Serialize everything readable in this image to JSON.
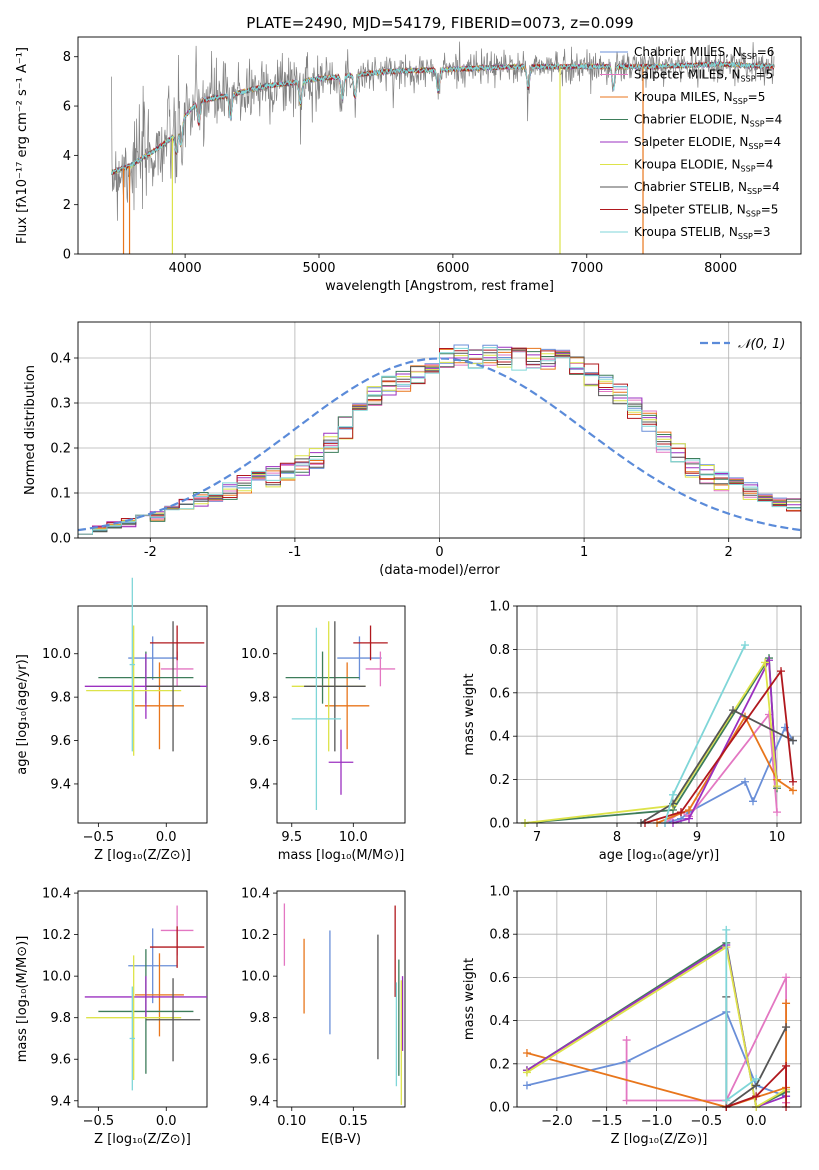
{
  "figure": {
    "title": "PLATE=2490, MJD=54179, FIBERID=0073, z=0.099"
  },
  "colors": {
    "Chabrier MILES": "#6a8fd8",
    "Salpeter MILES": "#e377c2",
    "Kroupa MILES": "#e8761c",
    "Chabrier ELODIE": "#3d7d5a",
    "Salpeter ELODIE": "#9b30c0",
    "Kroupa ELODIE": "#dde34a",
    "Chabrier STELIB": "#555555",
    "Salpeter STELIB": "#b0181e",
    "Kroupa STELIB": "#7fd6d8",
    "normal": "#5b8bd9"
  },
  "chart_data": [
    {
      "id": "spectrum",
      "type": "line",
      "title": "PLATE=2490, MJD=54179, FIBERID=0073, z=0.099",
      "xlabel": "wavelength [Angstrom, rest frame]",
      "ylabel": "Flux [fλ10⁻¹⁷ erg cm⁻² s⁻¹ A⁻¹]",
      "xlim": [
        3200,
        8600
      ],
      "ylim": [
        0,
        8.8
      ],
      "xticks": [
        4000,
        5000,
        6000,
        7000,
        8000
      ],
      "yticks": [
        0,
        2,
        4,
        6,
        8
      ],
      "legend_position": "upper right",
      "grid": false,
      "continuum_knots": {
        "x": [
          3450,
          3600,
          3800,
          3900,
          4000,
          4100,
          4300,
          4600,
          5000,
          5500,
          6000,
          6500,
          7000,
          7500,
          8000,
          8400
        ],
        "y": [
          3.3,
          3.6,
          4.3,
          4.7,
          5.6,
          6.2,
          6.4,
          6.8,
          7.1,
          7.4,
          7.5,
          7.6,
          7.6,
          7.6,
          7.7,
          7.6
        ]
      },
      "spikes": [
        {
          "x": 3540,
          "y": 0
        },
        {
          "x": 3585,
          "y": 0
        },
        {
          "x": 3905,
          "y": 0
        },
        {
          "x": 6800,
          "y": 0
        },
        {
          "x": 7420,
          "y": 0
        }
      ],
      "series": [
        {
          "name": "Chabrier MILES, N_SSP=6",
          "label_pre": "Chabrier MILES, N",
          "label_sub": "SSP",
          "label_post": "=6"
        },
        {
          "name": "Salpeter MILES, N_SSP=5",
          "label_pre": "Salpeter MILES, N",
          "label_sub": "SSP",
          "label_post": "=5"
        },
        {
          "name": "Kroupa MILES, N_SSP=5",
          "label_pre": "Kroupa MILES, N",
          "label_sub": "SSP",
          "label_post": "=5"
        },
        {
          "name": "Chabrier ELODIE, N_SSP=4",
          "label_pre": "Chabrier ELODIE, N",
          "label_sub": "SSP",
          "label_post": "=4"
        },
        {
          "name": "Salpeter ELODIE, N_SSP=4",
          "label_pre": "Salpeter ELODIE, N",
          "label_sub": "SSP",
          "label_post": "=4"
        },
        {
          "name": "Kroupa ELODIE, N_SSP=4",
          "label_pre": "Kroupa ELODIE, N",
          "label_sub": "SSP",
          "label_post": "=4"
        },
        {
          "name": "Chabrier STELIB, N_SSP=4",
          "label_pre": "Chabrier STELIB, N",
          "label_sub": "SSP",
          "label_post": "=4"
        },
        {
          "name": "Salpeter STELIB, N_SSP=5",
          "label_pre": "Salpeter STELIB, N",
          "label_sub": "SSP",
          "label_post": "=5"
        },
        {
          "name": "Kroupa STELIB, N_SSP=3",
          "label_pre": "Kroupa STELIB, N",
          "label_sub": "SSP",
          "label_post": "=3"
        }
      ]
    },
    {
      "id": "residuals",
      "type": "histogram",
      "xlabel": "(data-model)/error",
      "ylabel": "Normed distribution",
      "xlim": [
        -2.5,
        2.5
      ],
      "ylim": [
        0,
        0.48
      ],
      "xticks": [
        -2,
        -1,
        0,
        1,
        2
      ],
      "yticks": [
        0.0,
        0.1,
        0.2,
        0.3,
        0.4
      ],
      "grid": true,
      "legend": "𝒩(0, 1)",
      "legend_position": "upper right",
      "bin_width": 0.1,
      "bin_start": -2.5,
      "base_values": [
        0.016,
        0.021,
        0.028,
        0.034,
        0.041,
        0.048,
        0.058,
        0.071,
        0.085,
        0.096,
        0.106,
        0.118,
        0.13,
        0.138,
        0.148,
        0.16,
        0.178,
        0.212,
        0.245,
        0.285,
        0.318,
        0.335,
        0.35,
        0.366,
        0.39,
        0.4,
        0.405,
        0.402,
        0.405,
        0.4,
        0.398,
        0.4,
        0.398,
        0.395,
        0.382,
        0.362,
        0.34,
        0.322,
        0.29,
        0.258,
        0.215,
        0.188,
        0.156,
        0.14,
        0.128,
        0.113,
        0.104,
        0.093,
        0.082,
        0.075,
        0.07,
        0.06,
        0.05,
        0.042,
        0.035,
        0.03,
        0.025,
        0.02,
        0.017,
        0.014,
        0.012
      ]
    },
    {
      "id": "age-vs-Z",
      "type": "errorbar",
      "xlabel": "Z [log₁₀(Z/Z⊙)]",
      "ylabel": "age  [log₁₀(age/yr)]",
      "xlim": [
        -0.65,
        0.3
      ],
      "ylim": [
        9.22,
        10.22
      ],
      "xticks": [
        -0.5,
        0.0
      ],
      "xticklabels": [
        "−0.5",
        "0.0"
      ],
      "yticks": [
        9.4,
        9.6,
        9.8,
        10.0
      ],
      "yticklabels": [
        "9.4",
        "9.6",
        "9.8",
        "10.0"
      ],
      "points": [
        {
          "series": "Chabrier MILES",
          "x": -0.1,
          "xerr": 0.18,
          "y": 9.98,
          "yerr": 0.1
        },
        {
          "series": "Salpeter MILES",
          "x": 0.08,
          "xerr": 0.12,
          "y": 9.93,
          "yerr": 0.08
        },
        {
          "series": "Kroupa MILES",
          "x": -0.05,
          "xerr": 0.18,
          "y": 9.76,
          "yerr": 0.2
        },
        {
          "series": "Chabrier ELODIE",
          "x": -0.15,
          "xerr": 0.35,
          "y": 9.89,
          "yerr": 0.12
        },
        {
          "series": "Salpeter ELODIE",
          "x": -0.15,
          "xerr": 0.45,
          "y": 9.85,
          "yerr": 0.15
        },
        {
          "series": "Kroupa ELODIE",
          "x": -0.24,
          "xerr": 0.35,
          "y": 9.83,
          "yerr": 0.3
        },
        {
          "series": "Chabrier STELIB",
          "x": 0.05,
          "xerr": 0.2,
          "y": 9.85,
          "yerr": 0.3
        },
        {
          "series": "Salpeter STELIB",
          "x": 0.08,
          "xerr": 0.2,
          "y": 10.05,
          "yerr": 0.08
        },
        {
          "series": "Kroupa STELIB",
          "x": -0.25,
          "xerr": 0.02,
          "y": 9.95,
          "yerr": 0.4
        }
      ]
    },
    {
      "id": "age-vs-mass",
      "type": "errorbar",
      "xlabel": "mass [log₁₀(M/M⊙)]",
      "ylabel": "",
      "xlim": [
        9.38,
        10.42
      ],
      "ylim": [
        9.22,
        10.22
      ],
      "xticks": [
        9.5,
        10.0
      ],
      "xticklabels": [
        "9.5",
        "10.0"
      ],
      "yticks": [
        9.4,
        9.6,
        9.8,
        10.0
      ],
      "yticklabels": [
        "9.4",
        "9.6",
        "9.8",
        "10.0"
      ],
      "points": [
        {
          "series": "Chabrier MILES",
          "x": 10.05,
          "xerr": 0.18,
          "y": 9.98,
          "yerr": 0.1
        },
        {
          "series": "Salpeter MILES",
          "x": 10.22,
          "xerr": 0.12,
          "y": 9.93,
          "yerr": 0.08
        },
        {
          "series": "Kroupa MILES",
          "x": 9.95,
          "xerr": 0.18,
          "y": 9.76,
          "yerr": 0.2
        },
        {
          "series": "Chabrier ELODIE",
          "x": 9.75,
          "xerr": 0.3,
          "y": 9.89,
          "yerr": 0.12
        },
        {
          "series": "Salpeter ELODIE",
          "x": 9.9,
          "xerr": 0.1,
          "y": 9.5,
          "yerr": 0.15
        },
        {
          "series": "Kroupa ELODIE",
          "x": 9.8,
          "xerr": 0.3,
          "y": 9.85,
          "yerr": 0.3
        },
        {
          "series": "Chabrier STELIB",
          "x": 9.85,
          "xerr": 0.25,
          "y": 9.85,
          "yerr": 0.3
        },
        {
          "series": "Salpeter STELIB",
          "x": 10.14,
          "xerr": 0.14,
          "y": 10.05,
          "yerr": 0.08
        },
        {
          "series": "Kroupa STELIB",
          "x": 9.7,
          "xerr": 0.2,
          "y": 9.7,
          "yerr": 0.42
        }
      ]
    },
    {
      "id": "weight-vs-age",
      "type": "line",
      "xlabel": "age  [log₁₀(age/yr)]",
      "ylabel": "mass weight",
      "xlim": [
        6.75,
        10.3
      ],
      "ylim": [
        0,
        1.0
      ],
      "xticks": [
        7,
        8,
        9,
        10
      ],
      "xticklabels": [
        "7",
        "8",
        "9",
        "10"
      ],
      "yticks": [
        0.0,
        0.2,
        0.4,
        0.6,
        0.8,
        1.0
      ],
      "yticklabels": [
        "0.0",
        "0.2",
        "0.4",
        "0.6",
        "0.8",
        "1.0"
      ],
      "grid": true,
      "series": [
        {
          "series": "Chabrier MILES",
          "x": [
            8.6,
            8.8,
            8.9,
            9.6,
            9.7,
            10.1,
            10.2
          ],
          "y": [
            0.0,
            0.02,
            0.05,
            0.19,
            0.1,
            0.44,
            0.38
          ]
        },
        {
          "series": "Salpeter MILES",
          "x": [
            8.6,
            8.8,
            8.9,
            9.9,
            10.0
          ],
          "y": [
            0.0,
            0.05,
            0.03,
            0.5,
            0.05
          ]
        },
        {
          "series": "Kroupa MILES",
          "x": [
            8.5,
            8.9,
            9.6,
            10.0,
            10.2
          ],
          "y": [
            0.0,
            0.06,
            0.49,
            0.2,
            0.15
          ]
        },
        {
          "series": "Chabrier ELODIE",
          "x": [
            6.85,
            8.7,
            9.9,
            10.0
          ],
          "y": [
            0.0,
            0.06,
            0.76,
            0.16
          ]
        },
        {
          "series": "Salpeter ELODIE",
          "x": [
            8.7,
            8.9,
            9.9,
            10.0
          ],
          "y": [
            0.0,
            0.02,
            0.75,
            0.17
          ]
        },
        {
          "series": "Kroupa ELODIE",
          "x": [
            6.85,
            8.7,
            9.85,
            10.0
          ],
          "y": [
            0.0,
            0.08,
            0.74,
            0.17
          ]
        },
        {
          "series": "Chabrier STELIB",
          "x": [
            8.3,
            8.7,
            9.45,
            10.2
          ],
          "y": [
            0.0,
            0.09,
            0.52,
            0.38
          ]
        },
        {
          "series": "Salpeter STELIB",
          "x": [
            8.35,
            8.8,
            10.05,
            10.2
          ],
          "y": [
            0.0,
            0.05,
            0.7,
            0.19
          ]
        },
        {
          "series": "Kroupa STELIB",
          "x": [
            8.6,
            8.7,
            9.6
          ],
          "y": [
            0.0,
            0.13,
            0.82
          ]
        }
      ]
    },
    {
      "id": "mass-vs-Z",
      "type": "errorbar",
      "xlabel": "Z [log₁₀(Z/Z⊙)]",
      "ylabel": "mass [log₁₀(M/M⊙)]",
      "xlim": [
        -0.65,
        0.3
      ],
      "ylim": [
        9.37,
        10.41
      ],
      "xticks": [
        -0.5,
        0.0
      ],
      "xticklabels": [
        "−0.5",
        "0.0"
      ],
      "yticks": [
        9.4,
        9.6,
        9.8,
        10.0,
        10.2,
        10.4
      ],
      "yticklabels": [
        "9.4",
        "9.6",
        "9.8",
        "10.0",
        "10.2",
        "10.4"
      ],
      "points": [
        {
          "series": "Chabrier MILES",
          "x": -0.1,
          "xerr": 0.18,
          "y": 10.05,
          "yerr": 0.18
        },
        {
          "series": "Salpeter MILES",
          "x": 0.08,
          "xerr": 0.12,
          "y": 10.22,
          "yerr": 0.12
        },
        {
          "series": "Kroupa MILES",
          "x": -0.05,
          "xerr": 0.18,
          "y": 9.91,
          "yerr": 0.2
        },
        {
          "series": "Chabrier ELODIE",
          "x": -0.15,
          "xerr": 0.35,
          "y": 9.83,
          "yerr": 0.3
        },
        {
          "series": "Salpeter ELODIE",
          "x": -0.15,
          "xerr": 0.45,
          "y": 9.9,
          "yerr": 0.1
        },
        {
          "series": "Kroupa ELODIE",
          "x": -0.24,
          "xerr": 0.35,
          "y": 9.8,
          "yerr": 0.3
        },
        {
          "series": "Chabrier STELIB",
          "x": 0.05,
          "xerr": 0.2,
          "y": 9.79,
          "yerr": 0.2
        },
        {
          "series": "Salpeter STELIB",
          "x": 0.08,
          "xerr": 0.2,
          "y": 10.14,
          "yerr": 0.1
        },
        {
          "series": "Kroupa STELIB",
          "x": -0.25,
          "xerr": 0.02,
          "y": 9.7,
          "yerr": 0.25
        }
      ]
    },
    {
      "id": "mass-vs-EBV",
      "type": "errorbar",
      "xlabel": "E(B-V)",
      "ylabel": "",
      "xlim": [
        0.088,
        0.192
      ],
      "ylim": [
        9.37,
        10.41
      ],
      "xticks": [
        0.1,
        0.15
      ],
      "xticklabels": [
        "0.10",
        "0.15"
      ],
      "yticks": [
        9.4,
        9.6,
        9.8,
        10.0,
        10.2,
        10.4
      ],
      "yticklabels": [
        "9.4",
        "9.6",
        "9.8",
        "10.0",
        "10.2",
        "10.4"
      ],
      "points": [
        {
          "series": "Chabrier MILES",
          "x": 0.131,
          "xerr": 0.0,
          "y": 9.97,
          "yerr": 0.25
        },
        {
          "series": "Salpeter MILES",
          "x": 0.094,
          "xerr": 0.0,
          "y": 10.2,
          "yerr": 0.15
        },
        {
          "series": "Kroupa MILES",
          "x": 0.11,
          "xerr": 0.0,
          "y": 10.0,
          "yerr": 0.18
        },
        {
          "series": "Chabrier ELODIE",
          "x": 0.187,
          "xerr": 0.0,
          "y": 9.8,
          "yerr": 0.28
        },
        {
          "series": "Salpeter ELODIE",
          "x": 0.19,
          "xerr": 0.0,
          "y": 9.82,
          "yerr": 0.18
        },
        {
          "series": "Kroupa ELODIE",
          "x": 0.189,
          "xerr": 0.0,
          "y": 9.68,
          "yerr": 0.3
        },
        {
          "series": "Chabrier STELIB",
          "x": 0.17,
          "xerr": 0.0,
          "y": 9.9,
          "yerr": 0.3
        },
        {
          "series": "Salpeter STELIB",
          "x": 0.184,
          "xerr": 0.0,
          "y": 10.12,
          "yerr": 0.22
        },
        {
          "series": "Kroupa STELIB",
          "x": 0.185,
          "xerr": 0.0,
          "y": 9.72,
          "yerr": 0.25
        }
      ]
    },
    {
      "id": "weight-vs-Z",
      "type": "line",
      "xlabel": "Z [log₁₀(Z/Z⊙)]",
      "ylabel": "mass weight",
      "xlim": [
        -2.4,
        0.45
      ],
      "ylim": [
        0,
        1.0
      ],
      "xticks": [
        -2.0,
        -1.5,
        -1.0,
        -0.5,
        0.0
      ],
      "xticklabels": [
        "−2.0",
        "−1.5",
        "−1.0",
        "−0.5",
        "0.0"
      ],
      "yticks": [
        0.0,
        0.2,
        0.4,
        0.6,
        0.8,
        1.0
      ],
      "yticklabels": [
        "0.0",
        "0.2",
        "0.4",
        "0.6",
        "0.8",
        "1.0"
      ],
      "grid": true,
      "series": [
        {
          "series": "Chabrier MILES",
          "x": [
            -2.3,
            -1.3,
            -0.3,
            0.0,
            0.3
          ],
          "y": [
            0.1,
            0.21,
            0.44,
            0.1,
            0.05
          ]
        },
        {
          "series": "Salpeter MILES",
          "x": [
            -1.3,
            -1.3,
            -0.3,
            0.3,
            0.3
          ],
          "y": [
            0.31,
            0.03,
            0.03,
            0.6,
            0.02
          ]
        },
        {
          "series": "Kroupa MILES",
          "x": [
            -2.3,
            -0.3,
            0.3,
            0.3
          ],
          "y": [
            0.25,
            0.0,
            0.09,
            0.48
          ]
        },
        {
          "series": "Chabrier ELODIE",
          "x": [
            -2.3,
            -0.3,
            0.0,
            0.3
          ],
          "y": [
            0.17,
            0.76,
            0.0,
            0.07
          ]
        },
        {
          "series": "Salpeter ELODIE",
          "x": [
            -2.3,
            -0.3,
            0.0,
            0.3
          ],
          "y": [
            0.17,
            0.75,
            0.0,
            0.05
          ]
        },
        {
          "series": "Kroupa ELODIE",
          "x": [
            -2.3,
            -0.3,
            0.0,
            0.3
          ],
          "y": [
            0.16,
            0.74,
            0.0,
            0.08
          ]
        },
        {
          "series": "Chabrier STELIB",
          "x": [
            -0.3,
            -0.3,
            0.0,
            0.3
          ],
          "y": [
            0.51,
            0.0,
            0.1,
            0.37
          ]
        },
        {
          "series": "Salpeter STELIB",
          "x": [
            -0.3,
            0.0,
            0.3,
            0.3
          ],
          "y": [
            0.0,
            0.05,
            0.19,
            0.0
          ]
        },
        {
          "series": "Kroupa STELIB",
          "x": [
            -0.3,
            -0.3,
            0.0
          ],
          "y": [
            0.82,
            0.03,
            0.13
          ]
        }
      ]
    }
  ]
}
